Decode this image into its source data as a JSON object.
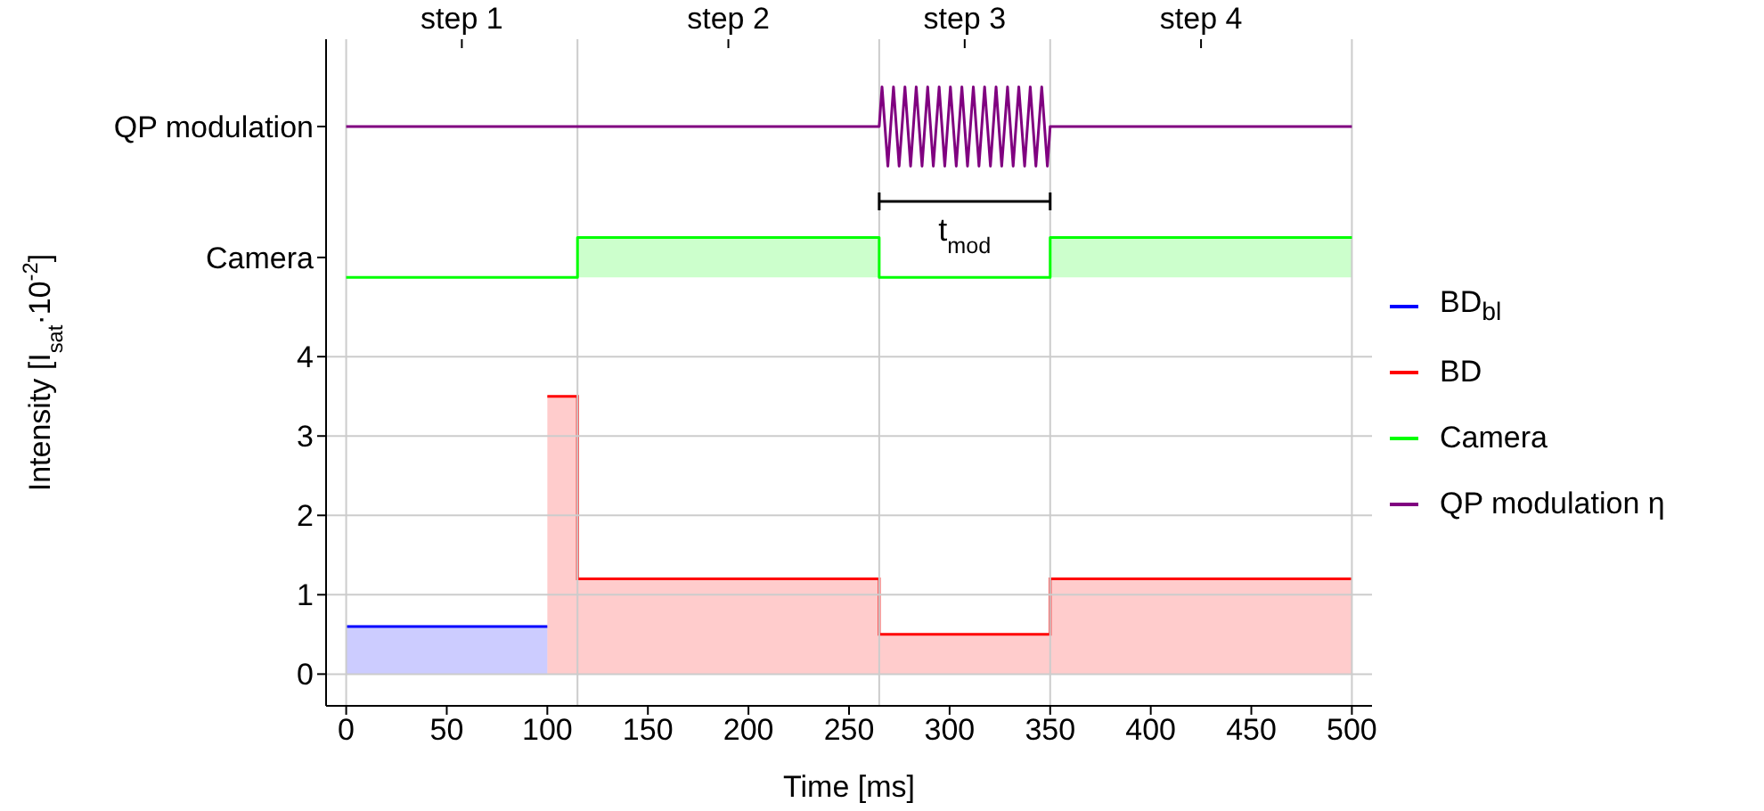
{
  "chart_data": {
    "type": "line",
    "xlabel": "Time [ms]",
    "ylabel": "Intensity [I$_{sat}$·10$^{-2}$]",
    "xlim": [
      -10,
      510
    ],
    "xticks": [
      0,
      50,
      100,
      150,
      200,
      250,
      300,
      350,
      400,
      450,
      500
    ],
    "ref_lines": [
      {
        "axis": "x",
        "value": 0,
        "color": "#cccccc"
      },
      {
        "axis": "x",
        "value": 115,
        "color": "#cccccc"
      },
      {
        "axis": "x",
        "value": 265,
        "color": "#cccccc"
      },
      {
        "axis": "x",
        "value": 350,
        "color": "#cccccc"
      },
      {
        "axis": "x",
        "value": 500,
        "color": "#cccccc"
      }
    ],
    "ylim": [
      -0.4,
      8
    ],
    "yticks": [
      0,
      1,
      2,
      3,
      4,
      {
        "value": 5.25,
        "label": "Camera"
      },
      {
        "value": 6.9,
        "label": "QP modulation"
      }
    ],
    "grid": "y",
    "legend": "right",
    "annotations": [
      "step 1",
      "step 2",
      "step 3",
      "step 4",
      {
        "text": "t$_{mod}$",
        "x": 307.5,
        "y": 6.9
      }
    ],
    "series": [
      {
        "name": "BD$_{bl}$",
        "type": "area",
        "color": "#0000ff",
        "x": [
          0,
          100
        ],
        "values": [
          0.6,
          0.6
        ]
      },
      {
        "name": "BD",
        "type": "area",
        "color": "#ff0000",
        "x": [
          100,
          115,
          115,
          265,
          265,
          350,
          350,
          500
        ],
        "values": [
          3.5,
          3.5,
          1.2,
          1.2,
          0.5,
          0.5,
          1.2,
          1.2
        ]
      },
      {
        "name": "Camera",
        "type": "line",
        "color": "#00ff00",
        "x": [
          0,
          115,
          115,
          265,
          265,
          350,
          350,
          500
        ],
        "values": [
          5,
          5,
          5.5,
          5.5,
          5,
          5,
          5.5,
          5.5
        ],
        "lower": [
          5,
          5,
          5,
          5,
          5,
          5,
          5,
          5
        ],
        "upper": [
          5,
          5,
          5.5,
          5.5,
          5,
          5,
          5.5,
          5.5
        ]
      },
      {
        "name": "QP modulation η",
        "type": "line",
        "color": "#800080",
        "x": [
          0,
          265,
          266.4,
          269.3,
          272.1,
          274.9,
          277.8,
          280.6,
          283.4,
          286.3,
          289.1,
          291.9,
          294.8,
          297.6,
          300.4,
          303.3,
          306.1,
          308.9,
          311.8,
          314.6,
          317.4,
          320.3,
          323.1,
          325.9,
          328.8,
          331.6,
          334.4,
          337.3,
          340.1,
          342.9,
          345.8,
          348.6,
          350,
          500
        ],
        "values": [
          6.9,
          6.9,
          7.4,
          6.4,
          7.4,
          6.4,
          7.4,
          6.4,
          7.4,
          6.4,
          7.4,
          6.4,
          7.4,
          6.4,
          7.4,
          6.4,
          7.4,
          6.4,
          7.4,
          6.4,
          7.4,
          6.4,
          7.4,
          6.4,
          7.4,
          6.4,
          7.4,
          6.4,
          7.4,
          6.4,
          7.4,
          6.4,
          6.9,
          6.9
        ]
      }
    ]
  }
}
